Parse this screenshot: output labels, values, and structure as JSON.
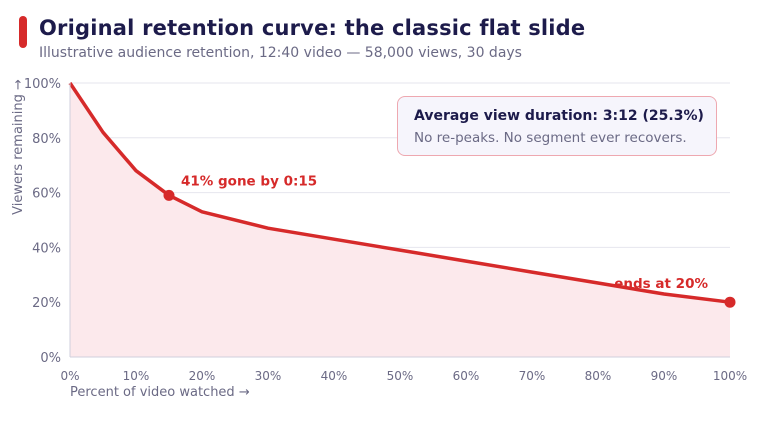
{
  "header": {
    "title": "Original retention curve: the classic flat slide",
    "subtitle": "Illustrative audience retention, 12:40 video — 58,000 views, 30 days"
  },
  "callout": {
    "title": "Average view duration: 3:12 (25.3%)",
    "body": "No re-peaks. No segment ever recovers."
  },
  "colors": {
    "accent": "#d62a2a",
    "line": "#d62a2a",
    "area": "#fce9ec",
    "grid": "#e6e6ee",
    "axis_text": "#6b6a85"
  },
  "chart_data": {
    "type": "area",
    "title": "Original retention curve: the classic flat slide",
    "subtitle": "Illustrative audience retention, 12:40 video — 58,000 views, 30 days",
    "xlabel": "Percent of video watched →",
    "ylabel": "Viewers remaining →",
    "xlim": [
      0,
      100
    ],
    "ylim": [
      0,
      100
    ],
    "grid": true,
    "x_ticks": [
      0,
      10,
      20,
      30,
      40,
      50,
      60,
      70,
      80,
      90,
      100
    ],
    "y_ticks": [
      0,
      20,
      40,
      60,
      80,
      100
    ],
    "tick_suffix": "%",
    "series": [
      {
        "x": [
          0,
          5,
          10,
          15,
          20,
          30,
          40,
          50,
          60,
          70,
          80,
          90,
          100
        ],
        "y": [
          100,
          82,
          68,
          59,
          53,
          47,
          43,
          39,
          35,
          31,
          27,
          23,
          20
        ]
      }
    ],
    "annotations": [
      {
        "x": 15,
        "y": 59,
        "text": "41% gone by 0:15"
      },
      {
        "x": 100,
        "y": 20,
        "text": "ends at 20%"
      }
    ]
  }
}
